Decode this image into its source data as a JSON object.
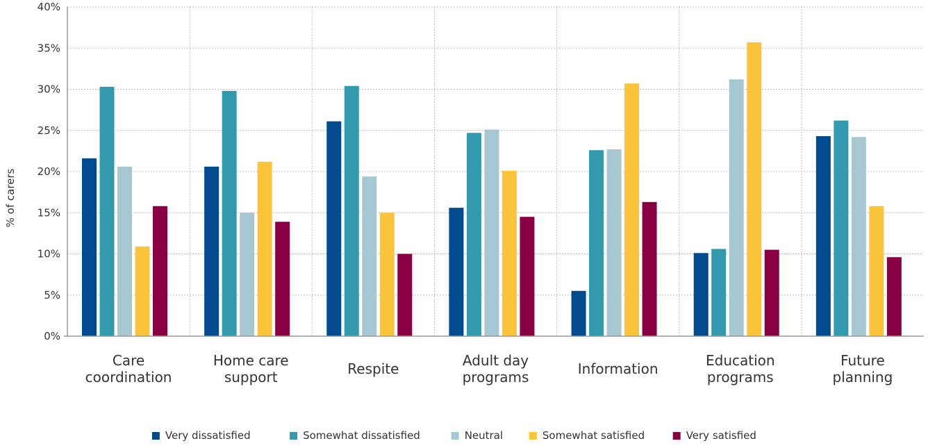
{
  "chart_data": {
    "type": "bar",
    "title": "",
    "xlabel": "",
    "ylabel": "% of carers",
    "ylim": [
      0,
      40
    ],
    "yticks": [
      0,
      5,
      10,
      15,
      20,
      25,
      30,
      35,
      40
    ],
    "ytick_labels": [
      "0%",
      "5%",
      "10%",
      "15%",
      "20%",
      "25%",
      "30%",
      "35%",
      "40%"
    ],
    "grid": true,
    "legend_position": "bottom-center",
    "categories": [
      [
        "Care",
        "coordination"
      ],
      [
        "Home care",
        "support"
      ],
      [
        "Respite"
      ],
      [
        "Adult day",
        "programs"
      ],
      [
        "Information"
      ],
      [
        "Education",
        "programs"
      ],
      [
        "Future",
        "planning"
      ]
    ],
    "series": [
      {
        "name": "Very dissatisfied",
        "color": "#004a8f",
        "values": [
          21.6,
          20.6,
          26.1,
          15.6,
          5.5,
          10.1,
          24.3
        ]
      },
      {
        "name": "Somewhat dissatisfied",
        "color": "#339aae",
        "values": [
          30.3,
          29.8,
          30.4,
          24.7,
          22.6,
          10.6,
          26.2
        ]
      },
      {
        "name": "Neutral",
        "color": "#a7c7d2",
        "values": [
          20.6,
          15.0,
          19.4,
          25.1,
          22.7,
          31.2,
          24.2
        ]
      },
      {
        "name": "Somewhat satisfied",
        "color": "#fcc43b",
        "values": [
          10.9,
          21.2,
          15.0,
          20.1,
          30.7,
          35.7,
          15.8
        ]
      },
      {
        "name": "Very satisfied",
        "color": "#8b0044",
        "values": [
          15.8,
          13.9,
          10.0,
          14.5,
          16.3,
          10.5,
          9.6
        ]
      }
    ],
    "axis_color": "#999999",
    "grid_color": "#bbbbbb"
  }
}
